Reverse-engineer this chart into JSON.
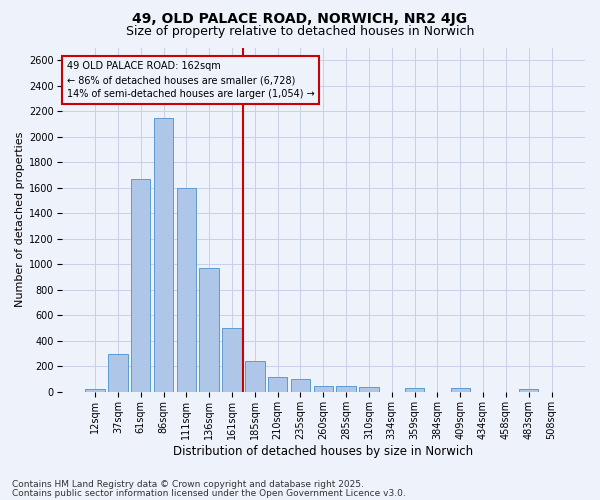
{
  "title": "49, OLD PALACE ROAD, NORWICH, NR2 4JG",
  "subtitle": "Size of property relative to detached houses in Norwich",
  "xlabel": "Distribution of detached houses by size in Norwich",
  "ylabel": "Number of detached properties",
  "footnote1": "Contains HM Land Registry data © Crown copyright and database right 2025.",
  "footnote2": "Contains public sector information licensed under the Open Government Licence v3.0.",
  "annotation_line1": "49 OLD PALACE ROAD: 162sqm",
  "annotation_line2": "← 86% of detached houses are smaller (6,728)",
  "annotation_line3": "14% of semi-detached houses are larger (1,054) →",
  "categories": [
    "12sqm",
    "37sqm",
    "61sqm",
    "86sqm",
    "111sqm",
    "136sqm",
    "161sqm",
    "185sqm",
    "210sqm",
    "235sqm",
    "260sqm",
    "285sqm",
    "310sqm",
    "334sqm",
    "359sqm",
    "384sqm",
    "409sqm",
    "434sqm",
    "458sqm",
    "483sqm",
    "508sqm"
  ],
  "bar_values": [
    25,
    300,
    1670,
    2150,
    1600,
    970,
    500,
    245,
    120,
    100,
    50,
    45,
    35,
    0,
    30,
    0,
    30,
    0,
    0,
    20,
    0
  ],
  "bar_color": "#aec6e8",
  "bar_edge_color": "#5b9bd5",
  "vline_color": "#cc0000",
  "vline_x_idx": 6,
  "ylim": [
    0,
    2700
  ],
  "yticks": [
    0,
    200,
    400,
    600,
    800,
    1000,
    1200,
    1400,
    1600,
    1800,
    2000,
    2200,
    2400,
    2600
  ],
  "background_color": "#eef2fb",
  "grid_color": "#c8d0e8",
  "annotation_box_color": "#cc0000",
  "title_fontsize": 10,
  "subtitle_fontsize": 9,
  "ylabel_fontsize": 8,
  "xlabel_fontsize": 8.5,
  "tick_fontsize": 7,
  "annotation_fontsize": 7,
  "footnote_fontsize": 6.5
}
